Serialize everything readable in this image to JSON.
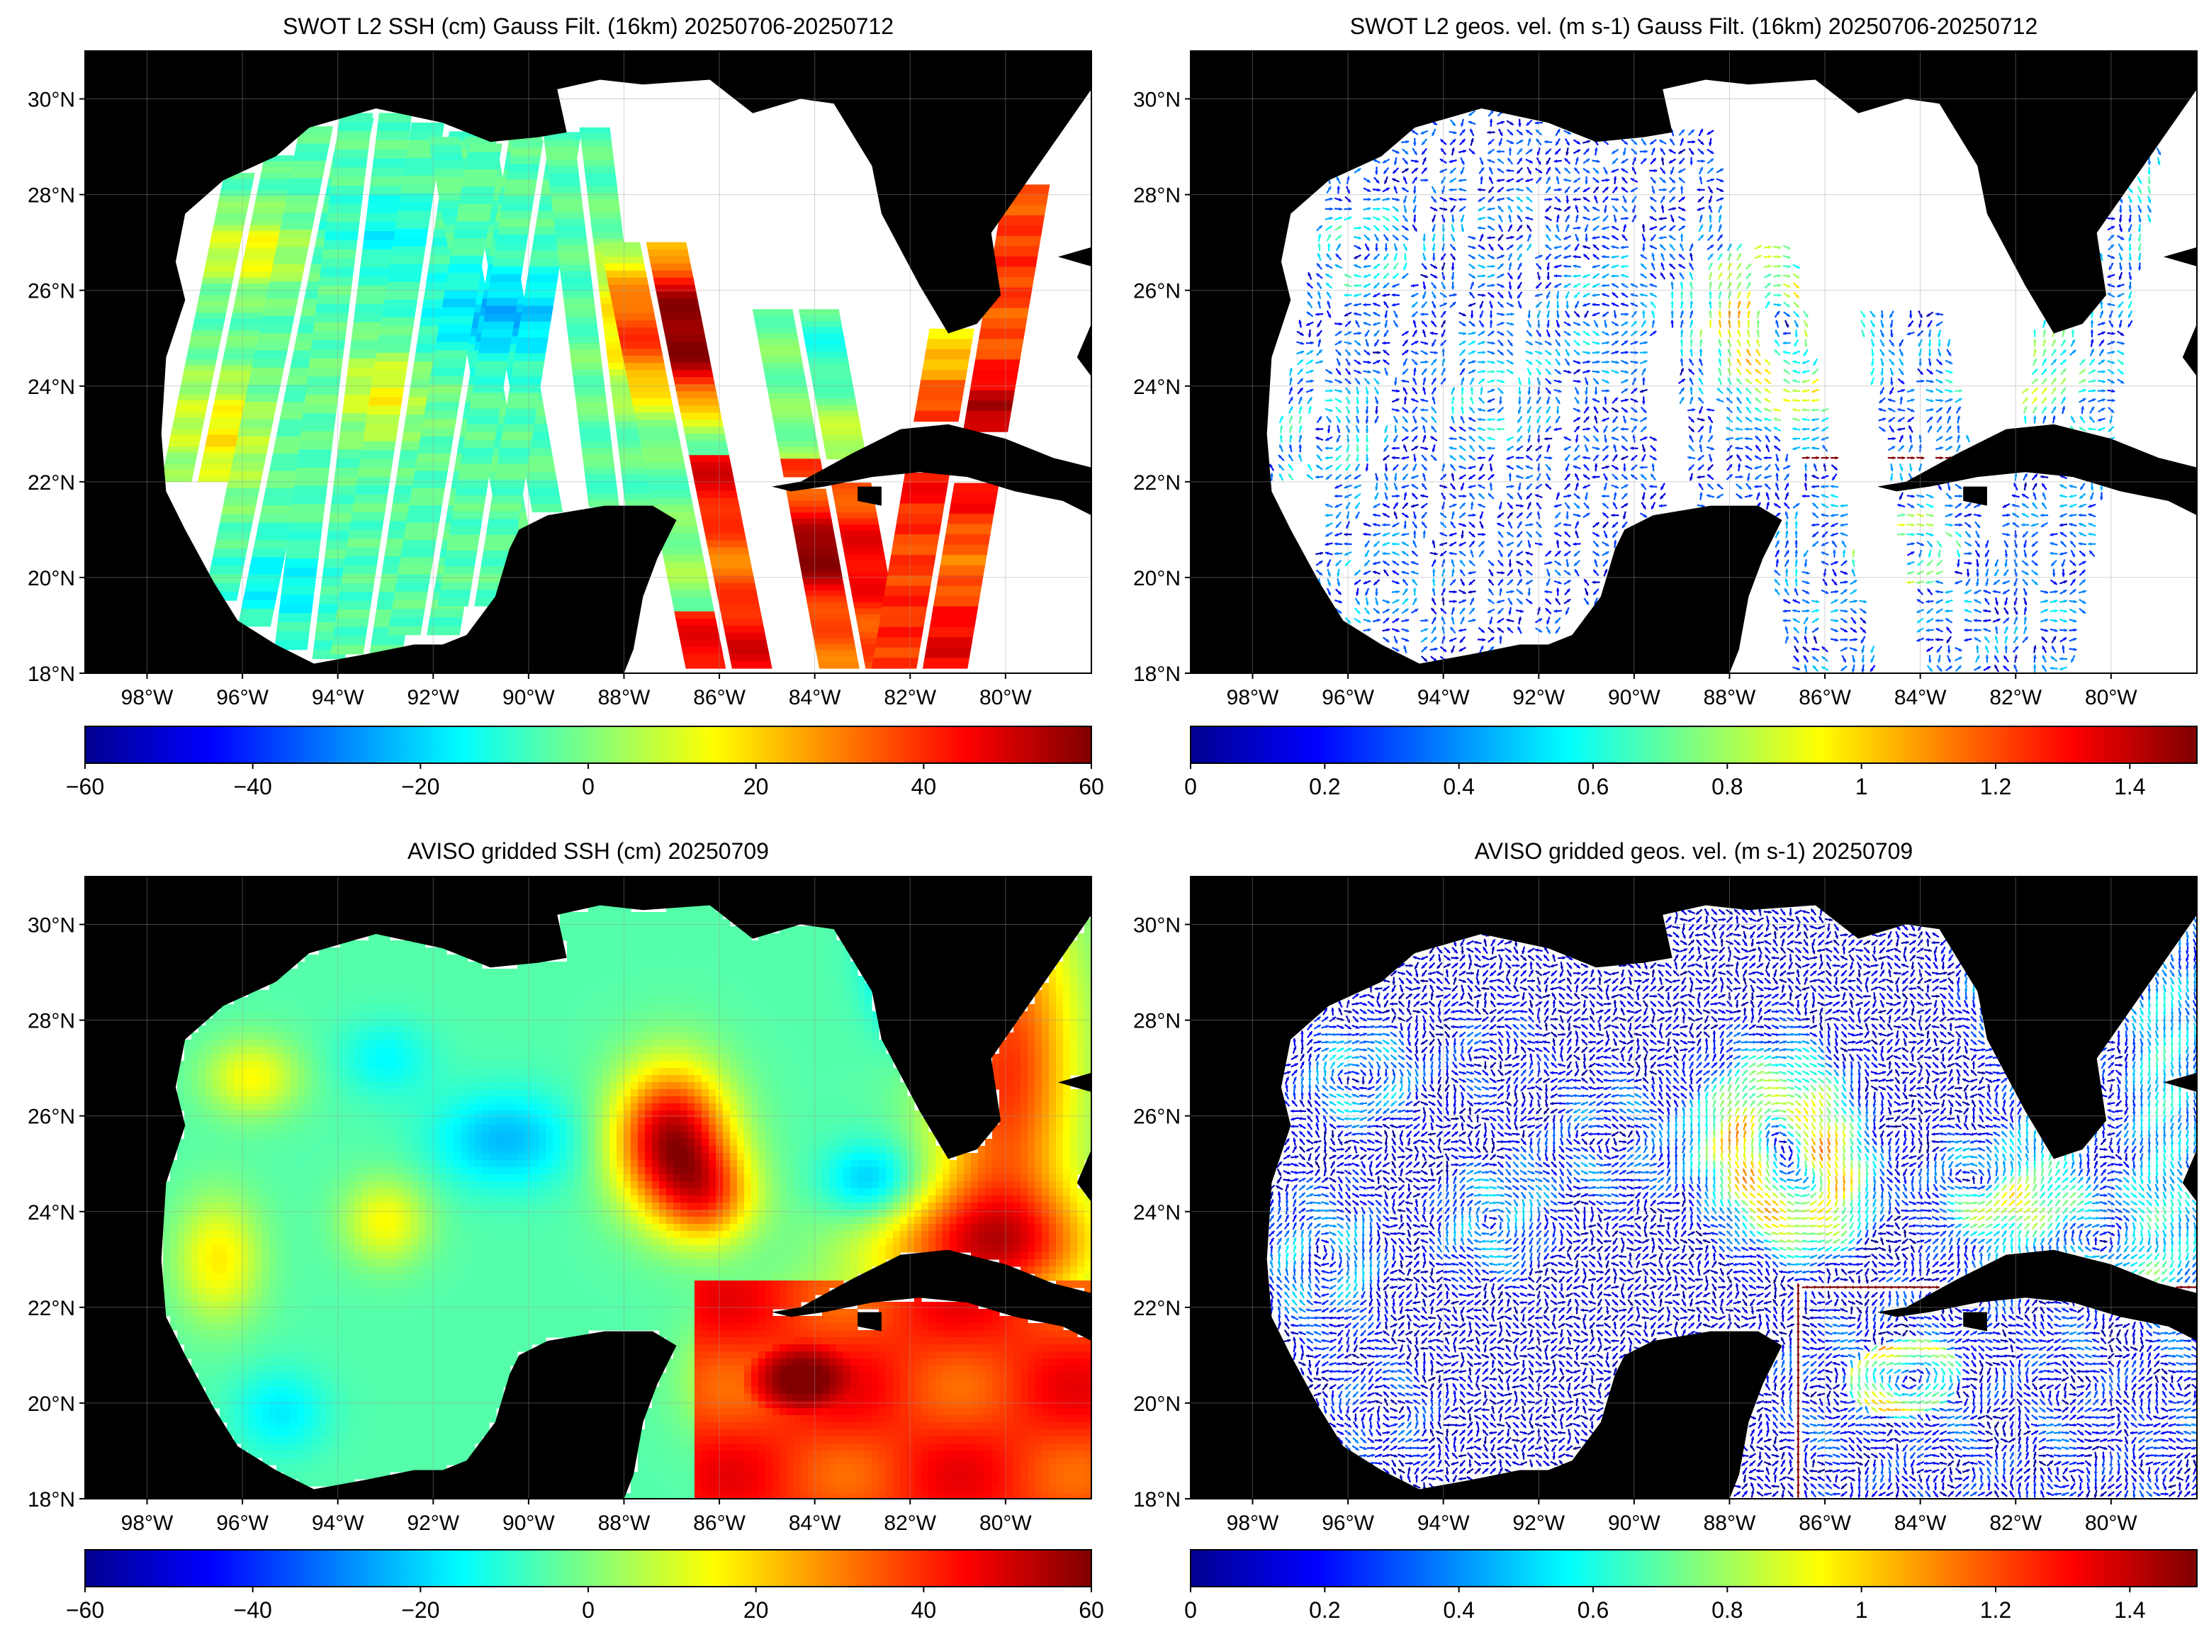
{
  "panels": [
    {
      "id": "swot-ssh",
      "title": "SWOT L2 SSH (cm) Gauss Filt. (16km) 20250706-20250712",
      "kind": "swot-ssh",
      "colorbar": {
        "ticks": [
          "−60",
          "−40",
          "−20",
          "0",
          "20",
          "40",
          "60"
        ],
        "range": [
          -60,
          60
        ]
      }
    },
    {
      "id": "swot-vel",
      "title": "SWOT L2 geos. vel. (m s-1) Gauss Filt. (16km) 20250706-20250712",
      "kind": "swot-vel",
      "colorbar": {
        "ticks": [
          "0",
          "0.2",
          "0.4",
          "0.6",
          "0.8",
          "1",
          "1.2",
          "1.4"
        ],
        "range": [
          0,
          1.5
        ]
      }
    },
    {
      "id": "aviso-ssh",
      "title": "AVISO gridded SSH (cm) 20250709",
      "kind": "aviso-ssh",
      "colorbar": {
        "ticks": [
          "−60",
          "−40",
          "−20",
          "0",
          "20",
          "40",
          "60"
        ],
        "range": [
          -60,
          60
        ]
      }
    },
    {
      "id": "aviso-vel",
      "title": "AVISO gridded geos. vel. (m s-1)  20250709",
      "kind": "aviso-vel",
      "colorbar": {
        "ticks": [
          "0",
          "0.2",
          "0.4",
          "0.6",
          "0.8",
          "1",
          "1.2",
          "1.4"
        ],
        "range": [
          0,
          1.5
        ]
      }
    }
  ],
  "map": {
    "lat_range": [
      18,
      31
    ],
    "lon_range": [
      -99.3,
      -78.2
    ],
    "lat_ticks": [
      "30°N",
      "28°N",
      "26°N",
      "24°N",
      "22°N",
      "20°N",
      "18°N"
    ],
    "lon_ticks": [
      "98°W",
      "96°W",
      "94°W",
      "92°W",
      "90°W",
      "88°W",
      "86°W",
      "84°W",
      "82°W",
      "80°W"
    ],
    "land_color": "#000000",
    "ocean_nodata_color": "#ffffff",
    "colormap": "jet"
  }
}
